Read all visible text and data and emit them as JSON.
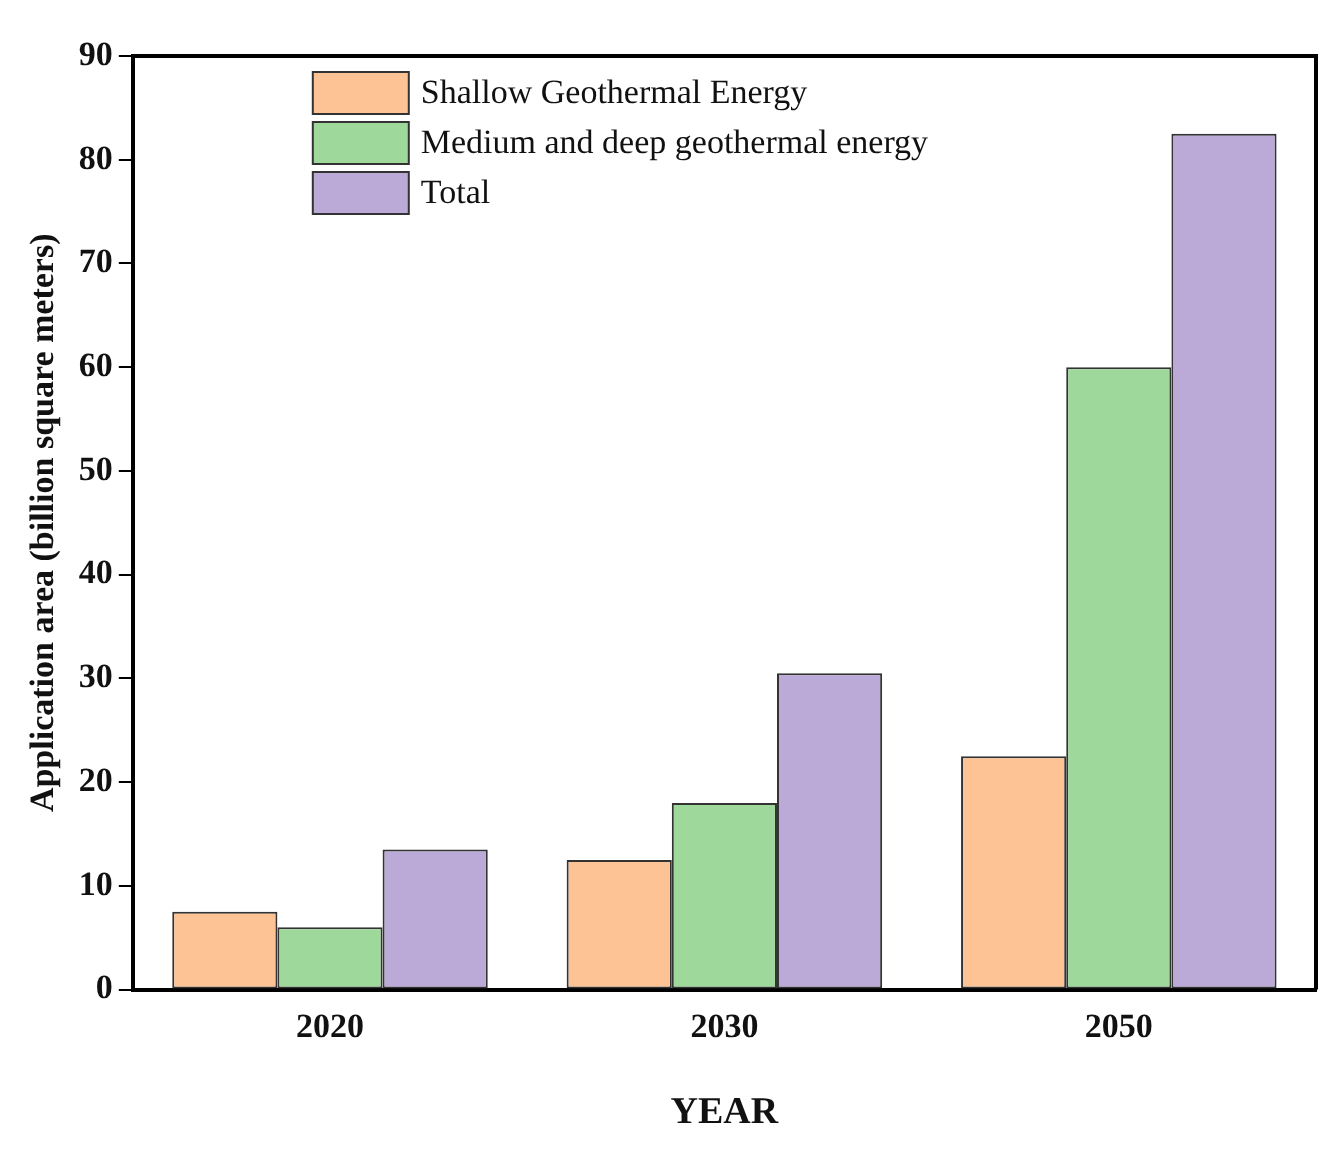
{
  "chart_data": {
    "type": "bar",
    "xlabel": "YEAR",
    "ylabel": "Application area (billion square meters)",
    "categories": [
      "2020",
      "2030",
      "2050"
    ],
    "series": [
      {
        "name": "Shallow Geothermal Energy",
        "color": "#fdc394",
        "values": [
          7.5,
          12.5,
          22.5
        ]
      },
      {
        "name": "Medium and deep geothermal energy",
        "color": "#9fd89b",
        "values": [
          6,
          18,
          60
        ]
      },
      {
        "name": "Total",
        "color": "#bba9d8",
        "values": [
          13.5,
          30.5,
          82.5
        ]
      }
    ],
    "ylim": [
      0,
      90
    ],
    "yticks": [
      0,
      10,
      20,
      30,
      40,
      50,
      60,
      70,
      80,
      90
    ],
    "grid": false,
    "legend": "top left"
  }
}
